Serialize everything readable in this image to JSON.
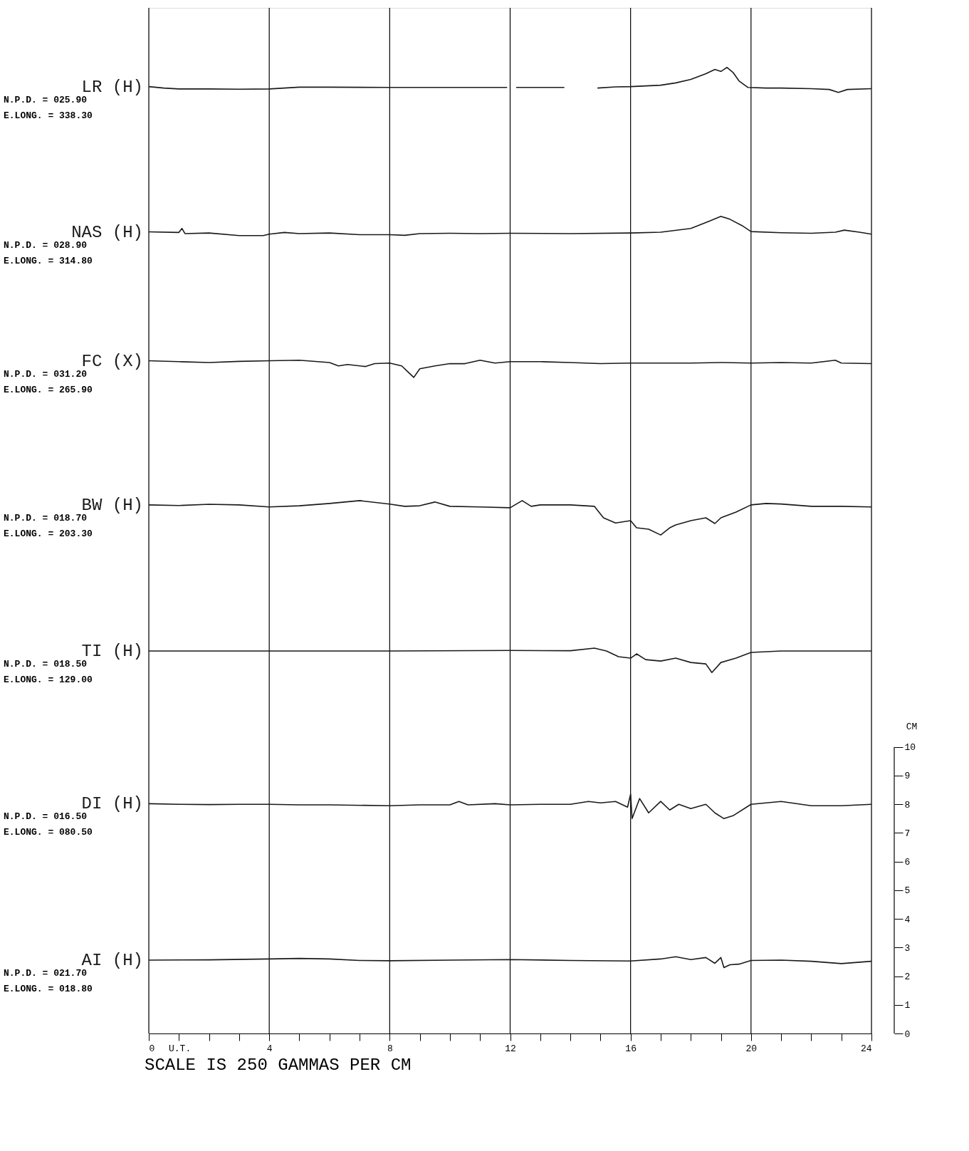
{
  "chart_data": {
    "type": "line",
    "xlabel": "U.T.",
    "ylabel": "CM",
    "xlim": [
      0,
      24
    ],
    "ylim": [
      0,
      35.8
    ],
    "xticks": [
      0,
      {
        "value": 1,
        "label": null
      },
      {
        "value": 2,
        "label": null
      },
      {
        "value": 3,
        "label": null
      },
      4,
      {
        "value": 5,
        "label": null
      },
      {
        "value": 6,
        "label": null
      },
      {
        "value": 7,
        "label": null
      },
      8,
      {
        "value": 9,
        "label": null
      },
      {
        "value": 10,
        "label": null
      },
      {
        "value": 11,
        "label": null
      },
      12,
      {
        "value": 13,
        "label": null
      },
      {
        "value": 14,
        "label": null
      },
      {
        "value": 15,
        "label": null
      },
      16,
      {
        "value": 17,
        "label": null
      },
      {
        "value": 18,
        "label": null
      },
      {
        "value": 19,
        "label": null
      },
      20,
      {
        "value": 21,
        "label": null
      },
      {
        "value": 22,
        "label": null
      },
      {
        "value": 23,
        "label": null
      },
      24
    ],
    "yticks": [
      0,
      1,
      2,
      3,
      4,
      5,
      6,
      7,
      8,
      9,
      10
    ],
    "grid": "x",
    "legend": false,
    "marker": "none",
    "line_style": "solid",
    "series": [
      {
        "name": "LR (H)",
        "color": "#1a1a1a",
        "x": [
          0,
          0.5,
          1,
          2,
          3,
          4,
          5,
          6,
          8,
          10,
          11.9,
          12.0,
          12.2,
          13.8,
          14.3,
          14.9,
          15.5,
          16,
          17,
          17.5,
          18,
          18.5,
          18.8,
          19,
          19.2,
          19.4,
          19.6,
          19.9,
          20.5,
          21,
          22,
          22.6,
          22.9,
          23.2,
          24
        ],
        "values": [
          33.05,
          33.0,
          32.97,
          32.97,
          32.96,
          32.97,
          33.03,
          33.03,
          33.02,
          33.02,
          33.02,
          null,
          33.02,
          33.02,
          null,
          33.0,
          33.04,
          33.05,
          33.1,
          33.18,
          33.3,
          33.5,
          33.65,
          33.58,
          33.72,
          33.55,
          33.25,
          33.02,
          33.0,
          33.0,
          32.98,
          32.95,
          32.85,
          32.95,
          32.98
        ]
      },
      {
        "name": "NAS (H)",
        "color": "#1a1a1a",
        "x": [
          0,
          1,
          1.1,
          1.2,
          2,
          3,
          3.8,
          4,
          4.5,
          5,
          6,
          7,
          8,
          8.5,
          9,
          10,
          11,
          12,
          14,
          16,
          17,
          18,
          18.6,
          19,
          19.3,
          19.7,
          20,
          21,
          22,
          22.8,
          23.1,
          23.6,
          24
        ],
        "values": [
          27.98,
          27.96,
          28.1,
          27.92,
          27.94,
          27.85,
          27.85,
          27.9,
          27.96,
          27.92,
          27.94,
          27.88,
          27.88,
          27.86,
          27.92,
          27.93,
          27.92,
          27.93,
          27.92,
          27.94,
          27.97,
          28.1,
          28.35,
          28.52,
          28.42,
          28.2,
          27.99,
          27.95,
          27.93,
          27.97,
          28.04,
          27.97,
          27.9
        ]
      },
      {
        "name": "FC (X)",
        "color": "#1a1a1a",
        "x": [
          0,
          1,
          2,
          3,
          4,
          5,
          6,
          6.3,
          6.6,
          7.2,
          7.5,
          8,
          8.4,
          8.6,
          8.8,
          9,
          9.5,
          10,
          10.5,
          11,
          11.5,
          12,
          13,
          14,
          15,
          16,
          17,
          18,
          19,
          20,
          21,
          22,
          22.8,
          23,
          24
        ],
        "values": [
          23.48,
          23.45,
          23.42,
          23.46,
          23.48,
          23.5,
          23.42,
          23.3,
          23.35,
          23.28,
          23.38,
          23.4,
          23.3,
          23.1,
          22.9,
          23.2,
          23.3,
          23.38,
          23.38,
          23.5,
          23.4,
          23.45,
          23.45,
          23.42,
          23.38,
          23.4,
          23.4,
          23.4,
          23.42,
          23.4,
          23.42,
          23.4,
          23.5,
          23.4,
          23.38
        ]
      },
      {
        "name": "BW (H)",
        "color": "#1a1a1a",
        "x": [
          0,
          1,
          2,
          3,
          4,
          5,
          6,
          7,
          8,
          8.5,
          9,
          9.5,
          10,
          11,
          12,
          12.4,
          12.7,
          13,
          14,
          14.8,
          15.1,
          15.5,
          16,
          16.2,
          16.6,
          17,
          17.3,
          17.5,
          18,
          18.5,
          18.8,
          19,
          19.5,
          20,
          20.5,
          21,
          22,
          23,
          24
        ],
        "values": [
          18.45,
          18.43,
          18.47,
          18.45,
          18.38,
          18.42,
          18.5,
          18.6,
          18.48,
          18.4,
          18.42,
          18.55,
          18.4,
          18.38,
          18.35,
          18.6,
          18.4,
          18.45,
          18.45,
          18.4,
          18.0,
          17.82,
          17.9,
          17.65,
          17.6,
          17.4,
          17.65,
          17.75,
          17.9,
          18.0,
          17.8,
          18.0,
          18.2,
          18.45,
          18.5,
          18.48,
          18.4,
          18.4,
          18.38
        ]
      },
      {
        "name": "TI (H)",
        "color": "#1a1a1a",
        "x": [
          0,
          4,
          8,
          12,
          14,
          14.8,
          15.2,
          15.6,
          16,
          16.2,
          16.5,
          17,
          17.5,
          18,
          18.5,
          18.7,
          19,
          19.5,
          20,
          21,
          22,
          23,
          24
        ],
        "values": [
          13.35,
          13.35,
          13.35,
          13.37,
          13.36,
          13.45,
          13.35,
          13.15,
          13.1,
          13.25,
          13.05,
          13.0,
          13.1,
          12.95,
          12.9,
          12.6,
          12.95,
          13.1,
          13.3,
          13.35,
          13.35,
          13.35,
          13.35
        ]
      },
      {
        "name": "DI (H)",
        "color": "#1a1a1a",
        "x": [
          0,
          1,
          2,
          3,
          4,
          5,
          6,
          8,
          9,
          10,
          10.3,
          10.6,
          11.5,
          12,
          13,
          14,
          14.6,
          15,
          15.5,
          15.9,
          16,
          16.05,
          16.3,
          16.6,
          17,
          17.3,
          17.6,
          18,
          18.5,
          18.8,
          19.1,
          19.4,
          20,
          21,
          22,
          23,
          24
        ],
        "values": [
          8.02,
          8.0,
          7.99,
          8.0,
          8.0,
          7.98,
          7.98,
          7.95,
          7.98,
          7.98,
          8.1,
          7.98,
          8.02,
          7.98,
          8.0,
          8.0,
          8.1,
          8.05,
          8.1,
          7.9,
          8.35,
          7.5,
          8.2,
          7.7,
          8.1,
          7.8,
          8.0,
          7.85,
          8.0,
          7.7,
          7.5,
          7.6,
          8.0,
          8.1,
          7.95,
          7.95,
          8.0
        ]
      },
      {
        "name": "AI (H)",
        "color": "#1a1a1a",
        "x": [
          0,
          2,
          4,
          5,
          6,
          7,
          8,
          10,
          12,
          14,
          16,
          17,
          17.5,
          18,
          18.5,
          18.8,
          19,
          19.1,
          19.3,
          19.6,
          20,
          21,
          22,
          23,
          24
        ],
        "values": [
          2.56,
          2.57,
          2.6,
          2.62,
          2.6,
          2.55,
          2.54,
          2.56,
          2.58,
          2.55,
          2.53,
          2.6,
          2.68,
          2.58,
          2.65,
          2.45,
          2.65,
          2.3,
          2.4,
          2.42,
          2.55,
          2.56,
          2.52,
          2.44,
          2.52
        ]
      }
    ],
    "annotations": [
      "N.P.D. = 025.90",
      "E.LONG. = 338.30",
      "N.P.D. = 028.90",
      "E.LONG. = 314.80",
      "N.P.D. = 031.20",
      "E.LONG. = 265.90",
      "N.P.D. = 018.70",
      "E.LONG. = 203.30",
      "N.P.D. = 018.50",
      "E.LONG. = 129.00",
      "N.P.D. = 016.50",
      "E.LONG. = 080.50",
      "N.P.D. = 021.70",
      "E.LONG. = 018.80",
      "SCALE IS  250 GAMMAS PER CM"
    ]
  }
}
